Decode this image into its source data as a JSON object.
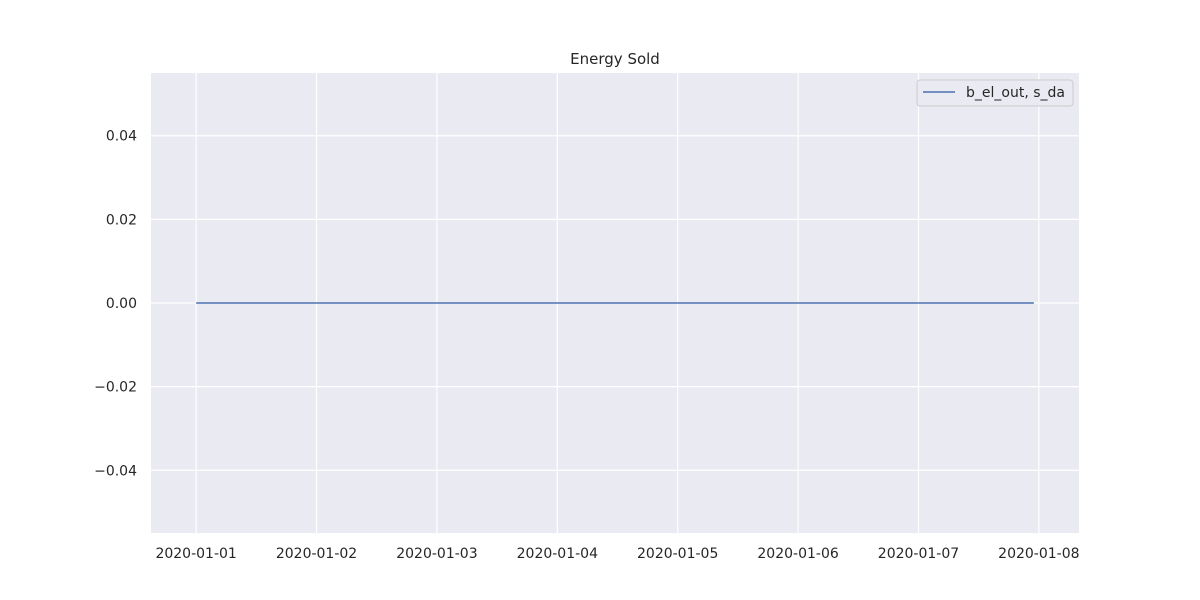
{
  "chart_data": {
    "type": "line",
    "title": "Energy Sold",
    "xlabel": "",
    "ylabel": "",
    "x_ticks": [
      "2020-01-01",
      "2020-01-02",
      "2020-01-03",
      "2020-01-04",
      "2020-01-05",
      "2020-01-06",
      "2020-01-07",
      "2020-01-08"
    ],
    "y_ticks": [
      0.04,
      0.02,
      0.0,
      -0.02,
      -0.04
    ],
    "y_tick_labels": [
      "0.04",
      "0.02",
      "0.00",
      "−0.02",
      "−0.04"
    ],
    "xlim": [
      "2019-12-31T15:00",
      "2020-01-08T08:00"
    ],
    "ylim": [
      -0.055,
      0.055
    ],
    "grid": true,
    "legend_position": "top-right",
    "series": [
      {
        "name": "b_el_out, s_da",
        "color": "#4c72b0",
        "x": [
          "2020-01-01T00:00",
          "2020-01-07T23:00"
        ],
        "y": [
          0,
          0
        ]
      }
    ]
  },
  "colors": {
    "plot_background": "#eaeaf2",
    "grid": "#ffffff",
    "text": "#262626"
  }
}
